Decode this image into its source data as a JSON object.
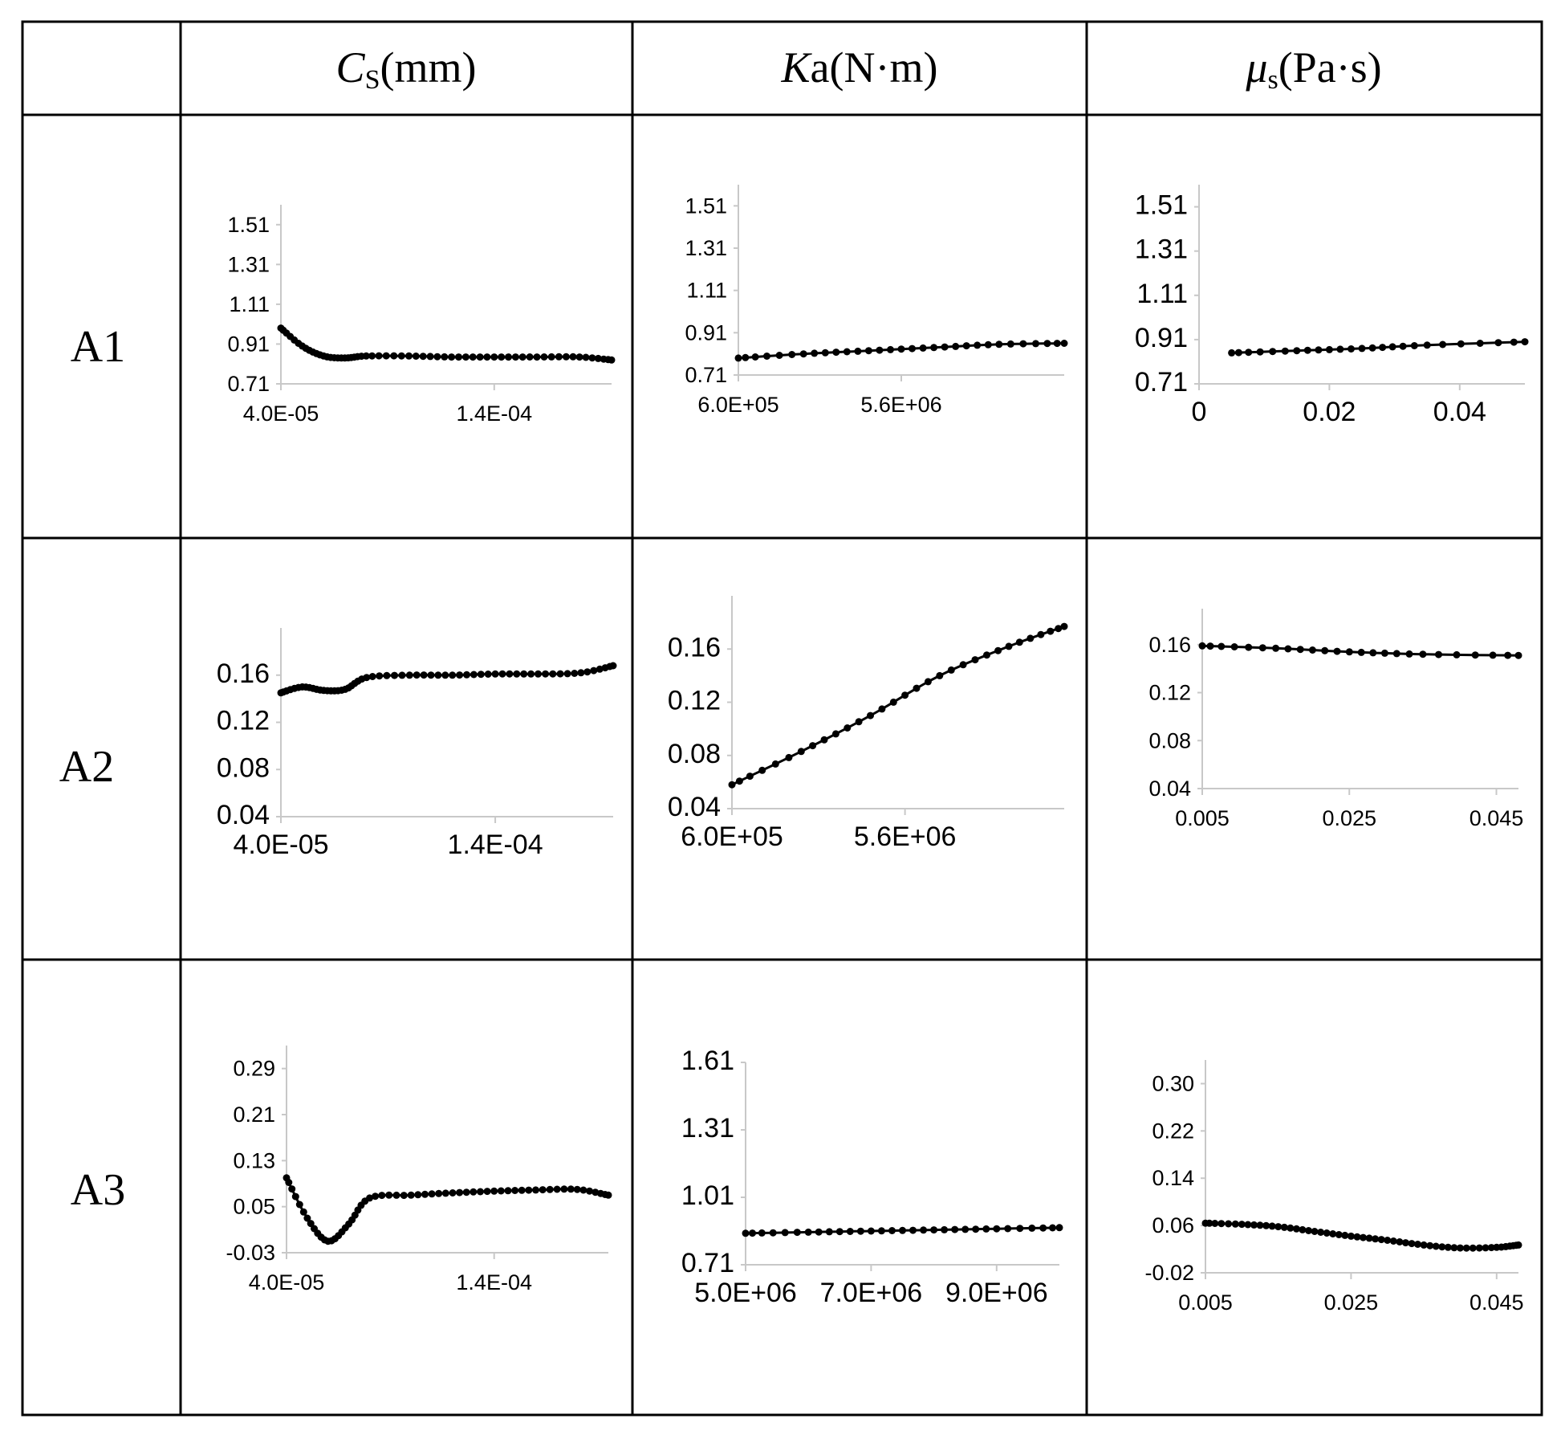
{
  "table": {
    "headers": [
      {
        "symbol": "C",
        "sub": "S",
        "unit": "(mm)"
      },
      {
        "symbol": "K",
        "sub": "a",
        "unit": "(N·m)"
      },
      {
        "symbol": "μ",
        "sub": "s",
        "unit": "(Pa·s)"
      }
    ],
    "rows": [
      "A1",
      "A2",
      "A3"
    ]
  },
  "chart_data": [
    {
      "id": "A1-Cs",
      "type": "line",
      "row": "A1",
      "column": "Cs(mm)",
      "x_ticks": [
        "4.0E-05",
        "1.4E-04"
      ],
      "x_tick_values": [
        4e-05,
        0.00014
      ],
      "xlim": [
        4e-05,
        0.000195
      ],
      "y_ticks": [
        "1.51",
        "1.31",
        "1.11",
        "0.91",
        "0.71"
      ],
      "y_tick_values": [
        1.51,
        1.31,
        1.11,
        0.91,
        0.71
      ],
      "ylim": [
        0.71,
        1.61
      ],
      "x": [
        4e-05,
        5e-05,
        6e-05,
        7e-05,
        8e-05,
        0.0001,
        0.00012,
        0.00014,
        0.00016,
        0.00018,
        0.000195
      ],
      "y": [
        0.99,
        0.9,
        0.85,
        0.84,
        0.85,
        0.85,
        0.845,
        0.845,
        0.845,
        0.845,
        0.83
      ]
    },
    {
      "id": "A1-Ka",
      "type": "line",
      "row": "A1",
      "column": "Ka(N·m)",
      "x_ticks": [
        "6.0E+05",
        "5.6E+06"
      ],
      "x_tick_values": [
        600000,
        5600000
      ],
      "xlim": [
        600000,
        10600000
      ],
      "y_ticks": [
        "1.51",
        "1.31",
        "1.11",
        "0.91",
        "0.71"
      ],
      "y_tick_values": [
        1.51,
        1.31,
        1.11,
        0.91,
        0.71
      ],
      "ylim": [
        0.71,
        1.61
      ],
      "x": [
        600000,
        2600000,
        4600000,
        6600000,
        8600000,
        10600000
      ],
      "y": [
        0.79,
        0.81,
        0.825,
        0.84,
        0.855,
        0.86
      ]
    },
    {
      "id": "A1-mus",
      "type": "line",
      "row": "A1",
      "column": "μs(Pa·s)",
      "x_ticks": [
        "0",
        "0.02",
        "0.04"
      ],
      "x_tick_values": [
        0,
        0.02,
        0.04
      ],
      "xlim": [
        0,
        0.05
      ],
      "y_ticks": [
        "1.51",
        "1.31",
        "1.11",
        "0.91",
        "0.71"
      ],
      "y_tick_values": [
        1.51,
        1.31,
        1.11,
        0.91,
        0.71
      ],
      "ylim": [
        0.71,
        1.61
      ],
      "x": [
        0.005,
        0.015,
        0.025,
        0.035,
        0.05
      ],
      "y": [
        0.85,
        0.86,
        0.87,
        0.885,
        0.9
      ]
    },
    {
      "id": "A2-Cs",
      "type": "line",
      "row": "A2",
      "column": "Cs(mm)",
      "x_ticks": [
        "4.0E-05",
        "1.4E-04"
      ],
      "x_tick_values": [
        4e-05,
        0.00014
      ],
      "xlim": [
        4e-05,
        0.000195
      ],
      "y_ticks": [
        "0.16",
        "0.12",
        "0.08",
        "0.04"
      ],
      "y_tick_values": [
        0.16,
        0.12,
        0.08,
        0.04
      ],
      "ylim": [
        0.04,
        0.2
      ],
      "x": [
        4e-05,
        5e-05,
        6e-05,
        7e-05,
        8e-05,
        0.0001,
        0.00012,
        0.00014,
        0.00016,
        0.00018,
        0.000195
      ],
      "y": [
        0.145,
        0.15,
        0.147,
        0.148,
        0.158,
        0.16,
        0.16,
        0.161,
        0.161,
        0.162,
        0.168
      ]
    },
    {
      "id": "A2-Ka",
      "type": "line",
      "row": "A2",
      "column": "Ka(N·m)",
      "x_ticks": [
        "6.0E+05",
        "5.6E+06"
      ],
      "x_tick_values": [
        600000,
        5600000
      ],
      "xlim": [
        600000,
        10200000
      ],
      "y_ticks": [
        "0.16",
        "0.12",
        "0.08",
        "0.04"
      ],
      "y_tick_values": [
        0.16,
        0.12,
        0.08,
        0.04
      ],
      "ylim": [
        0.04,
        0.2
      ],
      "x": [
        600000,
        2600000,
        4600000,
        6600000,
        8600000,
        10200000
      ],
      "y": [
        0.058,
        0.083,
        0.11,
        0.14,
        0.162,
        0.177
      ]
    },
    {
      "id": "A2-mus",
      "type": "line",
      "row": "A2",
      "column": "μs(Pa·s)",
      "x_ticks": [
        "0.005",
        "0.025",
        "0.045"
      ],
      "x_tick_values": [
        0.005,
        0.025,
        0.045
      ],
      "xlim": [
        0.005,
        0.048
      ],
      "y_ticks": [
        "0.16",
        "0.12",
        "0.08",
        "0.04"
      ],
      "y_tick_values": [
        0.16,
        0.12,
        0.08,
        0.04
      ],
      "ylim": [
        0.04,
        0.19
      ],
      "x": [
        0.005,
        0.015,
        0.025,
        0.035,
        0.048
      ],
      "y": [
        0.159,
        0.157,
        0.154,
        0.152,
        0.151
      ]
    },
    {
      "id": "A3-Cs",
      "type": "line",
      "row": "A3",
      "column": "Cs(mm)",
      "x_ticks": [
        "4.0E-05",
        "1.4E-04"
      ],
      "x_tick_values": [
        4e-05,
        0.00014
      ],
      "xlim": [
        4e-05,
        0.000195
      ],
      "y_ticks": [
        "0.29",
        "0.21",
        "0.13",
        "0.05",
        "-0.03"
      ],
      "y_tick_values": [
        0.29,
        0.21,
        0.13,
        0.05,
        -0.03
      ],
      "ylim": [
        -0.03,
        0.33
      ],
      "x": [
        4e-05,
        5e-05,
        6e-05,
        7e-05,
        8e-05,
        0.0001,
        0.00012,
        0.00014,
        0.00016,
        0.00018,
        0.000195
      ],
      "y": [
        0.1,
        0.03,
        -0.01,
        0.02,
        0.065,
        0.07,
        0.074,
        0.077,
        0.079,
        0.08,
        0.07
      ]
    },
    {
      "id": "A3-Ka",
      "type": "line",
      "row": "A3",
      "column": "Ka(N·m)",
      "x_ticks": [
        "5.0E+06",
        "7.0E+06",
        "9.0E+06"
      ],
      "x_tick_values": [
        5000000,
        7000000,
        9000000
      ],
      "xlim": [
        5000000,
        10000000
      ],
      "y_ticks": [
        "1.61",
        "1.31",
        "1.01",
        "0.71"
      ],
      "y_tick_values": [
        1.61,
        1.31,
        1.01,
        0.71
      ],
      "ylim": [
        0.71,
        1.61
      ],
      "x": [
        5000000,
        6000000,
        7000000,
        8000000,
        9000000,
        10000000
      ],
      "y": [
        0.85,
        0.855,
        0.86,
        0.865,
        0.87,
        0.875
      ]
    },
    {
      "id": "A3-mus",
      "type": "line",
      "row": "A3",
      "column": "μs(Pa·s)",
      "x_ticks": [
        "0.005",
        "0.025",
        "0.045"
      ],
      "x_tick_values": [
        0.005,
        0.025,
        0.045
      ],
      "xlim": [
        0.005,
        0.048
      ],
      "y_ticks": [
        "0.30",
        "0.22",
        "0.14",
        "0.06",
        "-0.02"
      ],
      "y_tick_values": [
        0.3,
        0.22,
        0.14,
        0.06,
        -0.02
      ],
      "ylim": [
        -0.02,
        0.34
      ],
      "x": [
        0.005,
        0.01,
        0.015,
        0.02,
        0.025,
        0.03,
        0.035,
        0.04,
        0.045,
        0.048
      ],
      "y": [
        0.064,
        0.062,
        0.058,
        0.05,
        0.042,
        0.035,
        0.027,
        0.022,
        0.023,
        0.027
      ]
    }
  ]
}
